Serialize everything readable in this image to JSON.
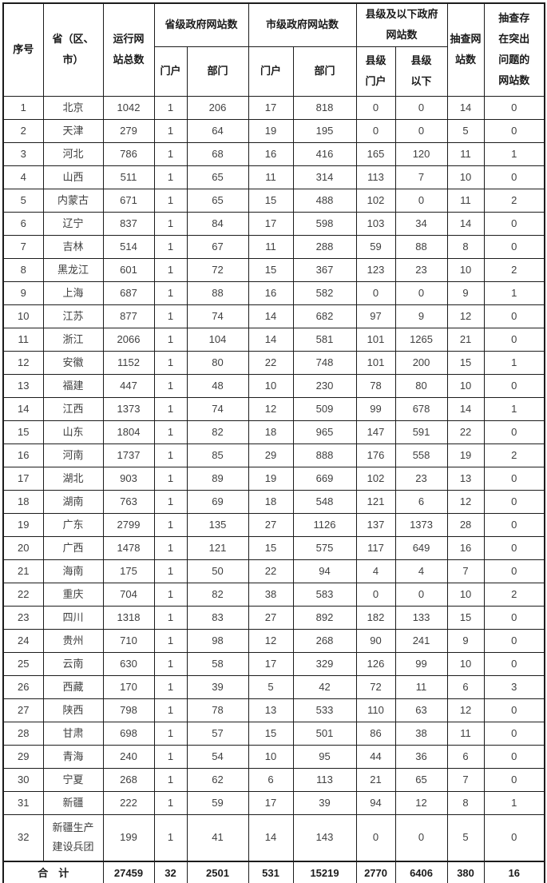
{
  "table": {
    "header": {
      "col_index": "序号",
      "col_province": "省（区、\n市）",
      "col_total_sites": "运行网\n站总数",
      "group_provincial": "省级政府网站数",
      "group_municipal": "市级政府网站数",
      "group_county": "县级及以下政府\n网站数",
      "sub_provincial_portal": "门户",
      "sub_provincial_department": "部门",
      "sub_municipal_portal": "门户",
      "sub_municipal_department": "部门",
      "sub_county_portal": "县级\n门户",
      "sub_county_below": "县级\n以下",
      "col_sampled": "抽查网\n站数",
      "col_problem": "抽查存\n在突出\n问题的\n网站数"
    },
    "rows": [
      [
        "1",
        "北京",
        "1042",
        "1",
        "206",
        "17",
        "818",
        "0",
        "0",
        "14",
        "0"
      ],
      [
        "2",
        "天津",
        "279",
        "1",
        "64",
        "19",
        "195",
        "0",
        "0",
        "5",
        "0"
      ],
      [
        "3",
        "河北",
        "786",
        "1",
        "68",
        "16",
        "416",
        "165",
        "120",
        "11",
        "1"
      ],
      [
        "4",
        "山西",
        "511",
        "1",
        "65",
        "11",
        "314",
        "113",
        "7",
        "10",
        "0"
      ],
      [
        "5",
        "内蒙古",
        "671",
        "1",
        "65",
        "15",
        "488",
        "102",
        "0",
        "11",
        "2"
      ],
      [
        "6",
        "辽宁",
        "837",
        "1",
        "84",
        "17",
        "598",
        "103",
        "34",
        "14",
        "0"
      ],
      [
        "7",
        "吉林",
        "514",
        "1",
        "67",
        "11",
        "288",
        "59",
        "88",
        "8",
        "0"
      ],
      [
        "8",
        "黑龙江",
        "601",
        "1",
        "72",
        "15",
        "367",
        "123",
        "23",
        "10",
        "2"
      ],
      [
        "9",
        "上海",
        "687",
        "1",
        "88",
        "16",
        "582",
        "0",
        "0",
        "9",
        "1"
      ],
      [
        "10",
        "江苏",
        "877",
        "1",
        "74",
        "14",
        "682",
        "97",
        "9",
        "12",
        "0"
      ],
      [
        "11",
        "浙江",
        "2066",
        "1",
        "104",
        "14",
        "581",
        "101",
        "1265",
        "21",
        "0"
      ],
      [
        "12",
        "安徽",
        "1152",
        "1",
        "80",
        "22",
        "748",
        "101",
        "200",
        "15",
        "1"
      ],
      [
        "13",
        "福建",
        "447",
        "1",
        "48",
        "10",
        "230",
        "78",
        "80",
        "10",
        "0"
      ],
      [
        "14",
        "江西",
        "1373",
        "1",
        "74",
        "12",
        "509",
        "99",
        "678",
        "14",
        "1"
      ],
      [
        "15",
        "山东",
        "1804",
        "1",
        "82",
        "18",
        "965",
        "147",
        "591",
        "22",
        "0"
      ],
      [
        "16",
        "河南",
        "1737",
        "1",
        "85",
        "29",
        "888",
        "176",
        "558",
        "19",
        "2"
      ],
      [
        "17",
        "湖北",
        "903",
        "1",
        "89",
        "19",
        "669",
        "102",
        "23",
        "13",
        "0"
      ],
      [
        "18",
        "湖南",
        "763",
        "1",
        "69",
        "18",
        "548",
        "121",
        "6",
        "12",
        "0"
      ],
      [
        "19",
        "广东",
        "2799",
        "1",
        "135",
        "27",
        "1126",
        "137",
        "1373",
        "28",
        "0"
      ],
      [
        "20",
        "广西",
        "1478",
        "1",
        "121",
        "15",
        "575",
        "117",
        "649",
        "16",
        "0"
      ],
      [
        "21",
        "海南",
        "175",
        "1",
        "50",
        "22",
        "94",
        "4",
        "4",
        "7",
        "0"
      ],
      [
        "22",
        "重庆",
        "704",
        "1",
        "82",
        "38",
        "583",
        "0",
        "0",
        "10",
        "2"
      ],
      [
        "23",
        "四川",
        "1318",
        "1",
        "83",
        "27",
        "892",
        "182",
        "133",
        "15",
        "0"
      ],
      [
        "24",
        "贵州",
        "710",
        "1",
        "98",
        "12",
        "268",
        "90",
        "241",
        "9",
        "0"
      ],
      [
        "25",
        "云南",
        "630",
        "1",
        "58",
        "17",
        "329",
        "126",
        "99",
        "10",
        "0"
      ],
      [
        "26",
        "西藏",
        "170",
        "1",
        "39",
        "5",
        "42",
        "72",
        "11",
        "6",
        "3"
      ],
      [
        "27",
        "陕西",
        "798",
        "1",
        "78",
        "13",
        "533",
        "110",
        "63",
        "12",
        "0"
      ],
      [
        "28",
        "甘肃",
        "698",
        "1",
        "57",
        "15",
        "501",
        "86",
        "38",
        "11",
        "0"
      ],
      [
        "29",
        "青海",
        "240",
        "1",
        "54",
        "10",
        "95",
        "44",
        "36",
        "6",
        "0"
      ],
      [
        "30",
        "宁夏",
        "268",
        "1",
        "62",
        "6",
        "113",
        "21",
        "65",
        "7",
        "0"
      ],
      [
        "31",
        "新疆",
        "222",
        "1",
        "59",
        "17",
        "39",
        "94",
        "12",
        "8",
        "1"
      ],
      [
        "32",
        "新疆生产\n建设兵团",
        "199",
        "1",
        "41",
        "14",
        "143",
        "0",
        "0",
        "5",
        "0"
      ]
    ],
    "total": {
      "label": "合　计",
      "values": [
        "27459",
        "32",
        "2501",
        "531",
        "15219",
        "2770",
        "6406",
        "380",
        "16"
      ]
    }
  },
  "colors": {
    "border": "#1c1c1c",
    "data_text": "#404040",
    "header_text": "#1a1a1a",
    "background": "#ffffff"
  }
}
